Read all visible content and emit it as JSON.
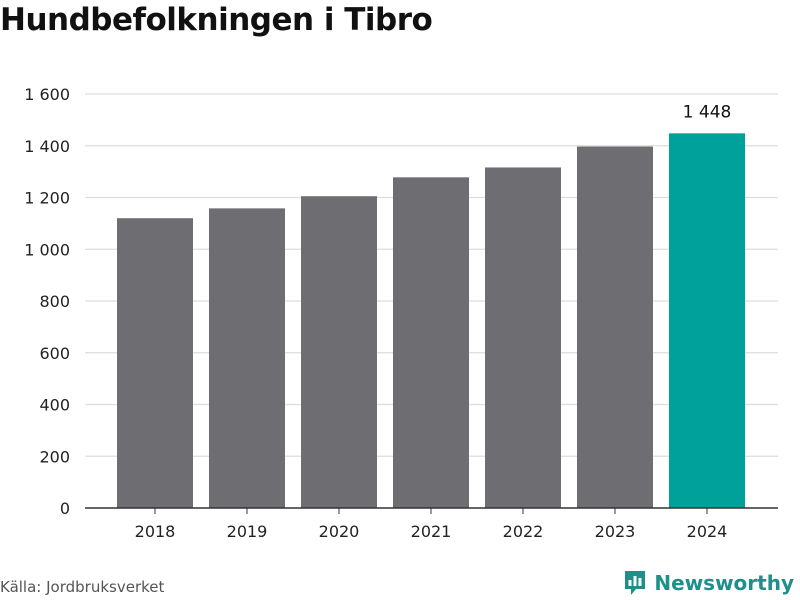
{
  "chart_data": {
    "type": "bar",
    "title": "Hundbefolkningen i Tibro",
    "categories": [
      "2018",
      "2019",
      "2020",
      "2021",
      "2022",
      "2023",
      "2024"
    ],
    "values": [
      1120,
      1158,
      1205,
      1278,
      1316,
      1397,
      1448
    ],
    "data_labels": [
      null,
      null,
      null,
      null,
      null,
      null,
      "1 448"
    ],
    "highlight_index": 6,
    "ylim": [
      0,
      1600
    ],
    "yticks": [
      0,
      200,
      400,
      600,
      800,
      1000,
      1200,
      1400,
      1600
    ],
    "ytick_labels": [
      "0",
      "200",
      "400",
      "600",
      "800",
      "1 000",
      "1 200",
      "1 400",
      "1 600"
    ],
    "xlabel": "",
    "ylabel": "",
    "grid": true,
    "colors": {
      "bar": "#6e6d72",
      "highlight": "#00a19a",
      "grid": "#dddddd",
      "axis": "#333333"
    }
  },
  "footer": {
    "source": "Källa: Jordbruksverket",
    "brand": "Newsworthy"
  },
  "brand_icon": "newsworthy-logo-icon"
}
